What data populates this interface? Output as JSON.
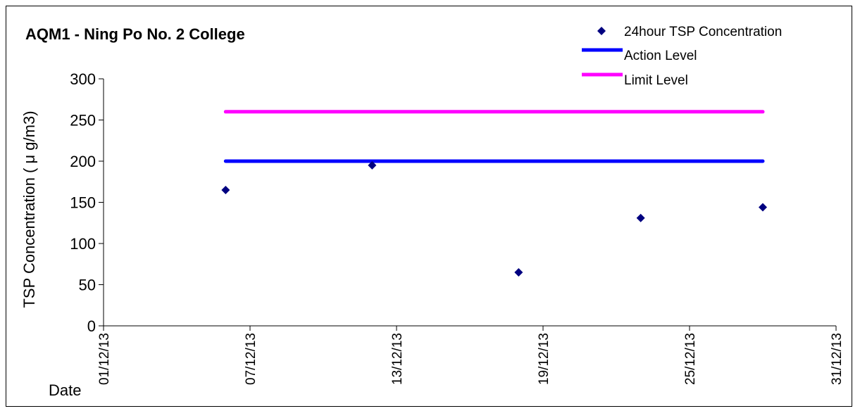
{
  "chart_data": {
    "type": "scatter",
    "title": "AQM1 - Ning Po No. 2 College",
    "ylabel": "TSP Concentration ( μ g/m3)",
    "xlabel": "Date",
    "ylim": [
      0,
      300
    ],
    "yticks": [
      "0",
      "50",
      "100",
      "150",
      "200",
      "250",
      "300"
    ],
    "xlim": [
      "2013-12-01",
      "2013-12-31"
    ],
    "xticks": [
      "01/12/13",
      "07/12/13",
      "13/12/13",
      "19/12/13",
      "25/12/13",
      "31/12/13"
    ],
    "grid": false,
    "legend_position": "top-right",
    "series": [
      {
        "name": "24hour TSP Concentration",
        "kind": "scatter",
        "marker": "diamond",
        "color": "#000080",
        "points": [
          {
            "x": "2013-12-06",
            "y": 165
          },
          {
            "x": "2013-12-12",
            "y": 195
          },
          {
            "x": "2013-12-18",
            "y": 65
          },
          {
            "x": "2013-12-23",
            "y": 131
          },
          {
            "x": "2013-12-28",
            "y": 144
          }
        ]
      },
      {
        "name": "Action Level",
        "kind": "line",
        "color": "#0000ff",
        "points": [
          {
            "x": "2013-12-06",
            "y": 200
          },
          {
            "x": "2013-12-28",
            "y": 200
          }
        ]
      },
      {
        "name": "Limit Level",
        "kind": "line",
        "color": "#ff00ff",
        "points": [
          {
            "x": "2013-12-06",
            "y": 260
          },
          {
            "x": "2013-12-28",
            "y": 260
          }
        ]
      }
    ]
  }
}
